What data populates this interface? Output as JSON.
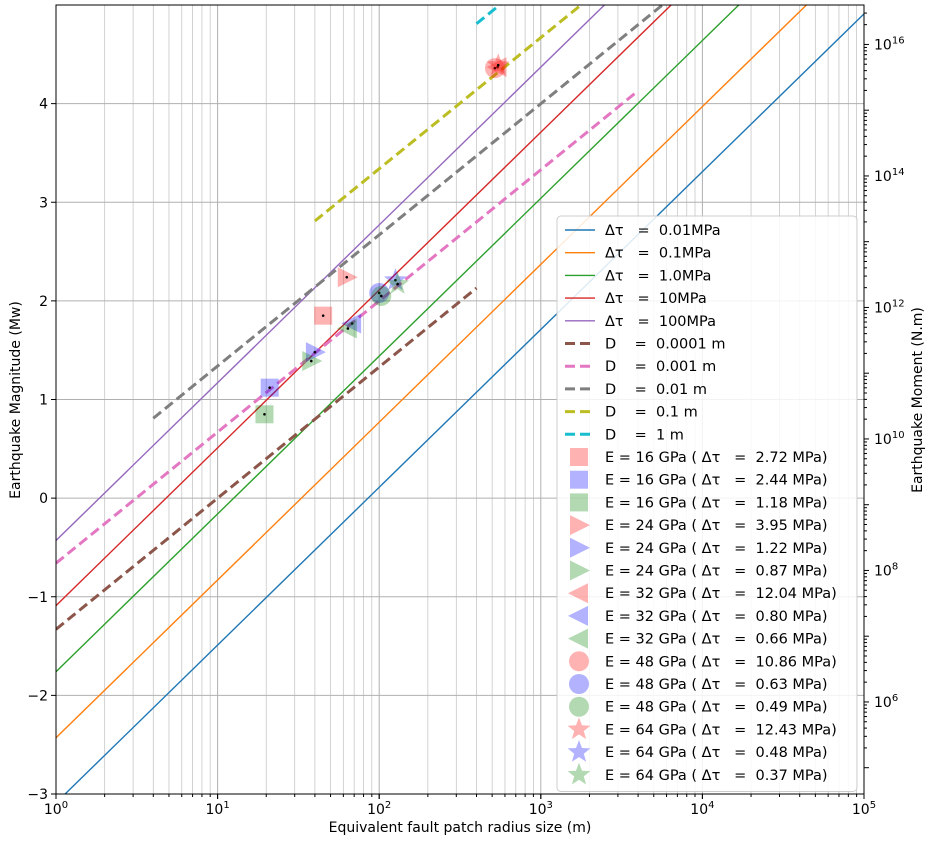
{
  "chart_data": {
    "type": "line",
    "xlabel": "Equivalent fault patch radius size (m)",
    "ylabel": "Earthquake Magnitude (Mw)",
    "ylabel_right": "Earthquake Moment (N.m)",
    "x_scale": "log",
    "xlim": [
      1,
      100000
    ],
    "ylim": [
      -3,
      5
    ],
    "grid": true,
    "legend_placement": "lower right",
    "x_ticks": [
      {
        "value": 1,
        "base": "10",
        "exp": "0"
      },
      {
        "value": 10,
        "base": "10",
        "exp": "1"
      },
      {
        "value": 100,
        "base": "10",
        "exp": "2"
      },
      {
        "value": 1000,
        "base": "10",
        "exp": "3"
      },
      {
        "value": 10000,
        "base": "10",
        "exp": "4"
      },
      {
        "value": 100000,
        "base": "10",
        "exp": "5"
      }
    ],
    "y_ticks": [
      {
        "value": -3,
        "label": "−3"
      },
      {
        "value": -2,
        "label": "−2"
      },
      {
        "value": -1,
        "label": "−1"
      },
      {
        "value": 0,
        "label": "0"
      },
      {
        "value": 1,
        "label": "1"
      },
      {
        "value": 2,
        "label": "2"
      },
      {
        "value": 3,
        "label": "3"
      },
      {
        "value": 4,
        "label": "4"
      }
    ],
    "y2_ticks": [
      {
        "moment": 1000000.0,
        "base": "10",
        "exp": "6"
      },
      {
        "moment": 100000000.0,
        "base": "10",
        "exp": "8"
      },
      {
        "moment": 10000000000.0,
        "base": "10",
        "exp": "10"
      },
      {
        "moment": 1000000000000.0,
        "base": "10",
        "exp": "12"
      },
      {
        "moment": 100000000000000.0,
        "base": "10",
        "exp": "14"
      },
      {
        "moment": 1e+16,
        "base": "10",
        "exp": "16"
      }
    ],
    "stress_lines": [
      {
        "name": "Δτ   =  0.01MPa",
        "color": "#1f77b4",
        "x": [
          1,
          100000
        ],
        "y": [
          -3.09,
          4.91
        ]
      },
      {
        "name": "Δτ   =  0.1MPa",
        "color": "#ff7f0e",
        "x": [
          1,
          100000
        ],
        "y": [
          -2.43,
          5.57
        ]
      },
      {
        "name": "Δτ   =  1.0MPa",
        "color": "#2ca02c",
        "x": [
          1,
          100000
        ],
        "y": [
          -1.76,
          6.24
        ]
      },
      {
        "name": "Δτ   =  10MPa",
        "color": "#d62728",
        "x": [
          1,
          100000
        ],
        "y": [
          -1.09,
          6.91
        ]
      },
      {
        "name": "Δτ   =  100MPa",
        "color": "#9467bd",
        "x": [
          1,
          100000
        ],
        "y": [
          -0.43,
          7.57
        ]
      }
    ],
    "displacement_lines": [
      {
        "name": "D    =  0.0001 m",
        "color": "#8c564b",
        "x": [
          1,
          400
        ],
        "y": [
          -1.33,
          2.13
        ]
      },
      {
        "name": "D    =  0.001 m",
        "color": "#e377c2",
        "x": [
          1,
          4000
        ],
        "y": [
          -0.66,
          4.13
        ]
      },
      {
        "name": "D    =  0.01 m",
        "color": "#7f7f7f",
        "x": [
          4,
          40000
        ],
        "y": [
          0.81,
          6.13
        ]
      },
      {
        "name": "D    =  0.1 m",
        "color": "#bcbd22",
        "x": [
          40,
          400000
        ],
        "y": [
          2.81,
          8.13
        ]
      },
      {
        "name": "D    =  1 m",
        "color": "#17becf",
        "x": [
          400,
          4000000
        ],
        "y": [
          4.81,
          10.13
        ]
      }
    ],
    "data_points": [
      {
        "name": "E = 16 GPa ( Δτ   =  2.72 MPa)",
        "marker": "square",
        "color": "#ff0000",
        "x": 45,
        "y": 1.85
      },
      {
        "name": "E = 16 GPa ( Δτ   =  2.44 MPa)",
        "marker": "square",
        "color": "#0000ff",
        "x": 21,
        "y": 1.12
      },
      {
        "name": "E = 16 GPa ( Δτ   =  1.18 MPa)",
        "marker": "square",
        "color": "#008000",
        "x": 19.5,
        "y": 0.85
      },
      {
        "name": "E = 24 GPa ( Δτ   =  3.95 MPa)",
        "marker": "triangle-right",
        "color": "#ff0000",
        "x": 63,
        "y": 2.24
      },
      {
        "name": "E = 24 GPa ( Δτ   =  1.22 MPa)",
        "marker": "triangle-right",
        "color": "#0000ff",
        "x": 40,
        "y": 1.48
      },
      {
        "name": "E = 24 GPa ( Δτ   =  0.87 MPa)",
        "marker": "triangle-right",
        "color": "#008000",
        "x": 38,
        "y": 1.39
      },
      {
        "name": "E = 32 GPa ( Δτ   =  12.04 MPa)",
        "marker": "triangle-left",
        "color": "#ff0000",
        "x": 540,
        "y": 4.37
      },
      {
        "name": "E = 32 GPa ( Δτ   =  0.80 MPa)",
        "marker": "triangle-left",
        "color": "#0000ff",
        "x": 68,
        "y": 1.77
      },
      {
        "name": "E = 32 GPa ( Δτ   =  0.66 MPa)",
        "marker": "triangle-left",
        "color": "#008000",
        "x": 64,
        "y": 1.72
      },
      {
        "name": "E = 48 GPa ( Δτ   =  10.86 MPa)",
        "marker": "circle",
        "color": "#ff0000",
        "x": 520,
        "y": 4.36
      },
      {
        "name": "E = 48 GPa ( Δτ   =  0.63 MPa)",
        "marker": "circle",
        "color": "#0000ff",
        "x": 100,
        "y": 2.08
      },
      {
        "name": "E = 48 GPa ( Δτ   =  0.49 MPa)",
        "marker": "circle",
        "color": "#008000",
        "x": 103,
        "y": 2.05
      },
      {
        "name": "E = 64 GPa ( Δτ   =  12.43 MPa)",
        "marker": "star",
        "color": "#ff0000",
        "x": 545,
        "y": 4.39
      },
      {
        "name": "E = 64 GPa ( Δτ   =  0.48 MPa)",
        "marker": "star",
        "color": "#0000ff",
        "x": 126,
        "y": 2.21
      },
      {
        "name": "E = 64 GPa ( Δτ   =  0.37 MPa)",
        "marker": "star",
        "color": "#008000",
        "x": 130,
        "y": 2.17
      }
    ]
  }
}
